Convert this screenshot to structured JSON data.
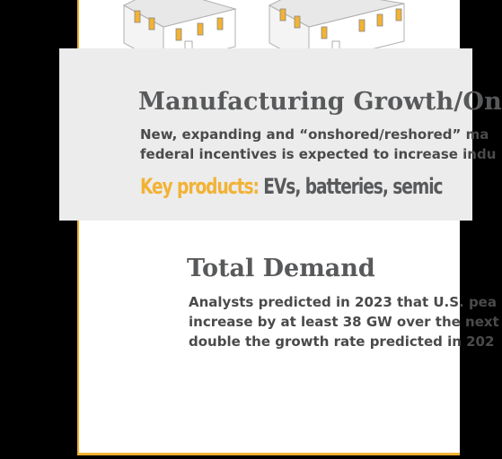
{
  "manufacturing": {
    "title": "Manufacturing Growth/On",
    "description_lines": [
      "New, expanding and “onshored/reshored” ma",
      "federal incentives is expected to increase indu"
    ],
    "key_products_label": "Key products:",
    "key_products_value": "EVs, batteries, semic"
  },
  "total_demand": {
    "title": "Total Demand",
    "description_lines": [
      "Analysts predicted in 2023 that U.S. pea",
      "increase by at least 38 GW over the next",
      "double the growth rate predicted in 202"
    ]
  },
  "colors": {
    "accent": "#f2b233",
    "heading": "#58595b",
    "banner_bg": "#ececec",
    "body_text": "#4a4a4a"
  },
  "icons": [
    "house-icon",
    "house-icon"
  ]
}
